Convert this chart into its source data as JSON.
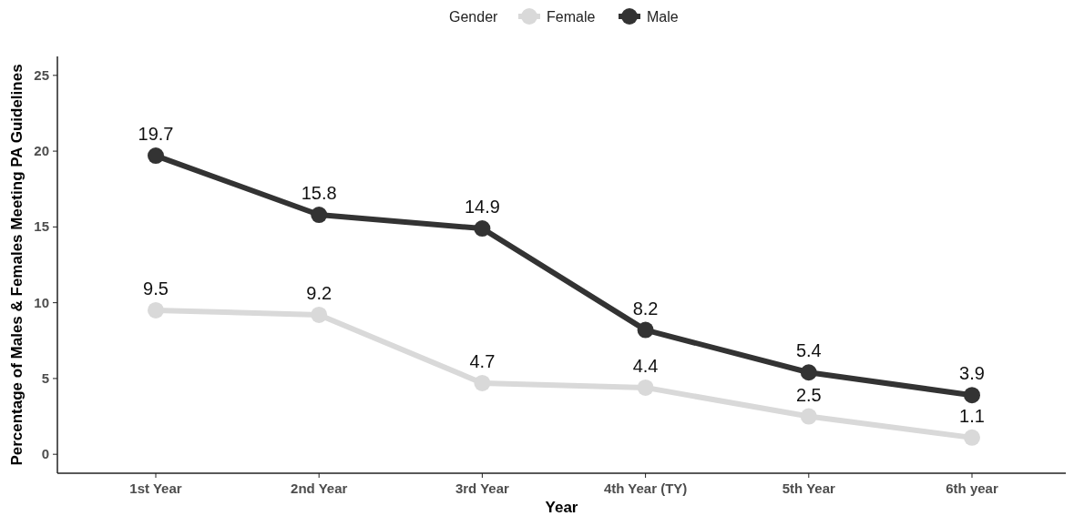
{
  "chart_data": {
    "type": "line",
    "xlabel": "Year",
    "ylabel": "Percentage of Males & Females Meeting PA Guidelines",
    "legend_title": "Gender",
    "categories": [
      "1st Year",
      "2nd Year",
      "3rd Year",
      "4th Year (TY)",
      "5th Year",
      "6th year"
    ],
    "series": [
      {
        "name": "Female",
        "color": "#d9d9d9",
        "values": [
          9.5,
          9.2,
          4.7,
          4.4,
          2.5,
          1.1
        ]
      },
      {
        "name": "Male",
        "color": "#333333",
        "values": [
          19.7,
          15.8,
          14.9,
          8.2,
          5.4,
          3.9
        ]
      }
    ],
    "ylim": [
      -1.25,
      26.25
    ],
    "yticks": [
      0,
      5,
      10,
      15,
      20,
      25
    ],
    "grid": false,
    "legend": "top",
    "marker": "circle",
    "line_style": "solid",
    "data_labels": true
  }
}
